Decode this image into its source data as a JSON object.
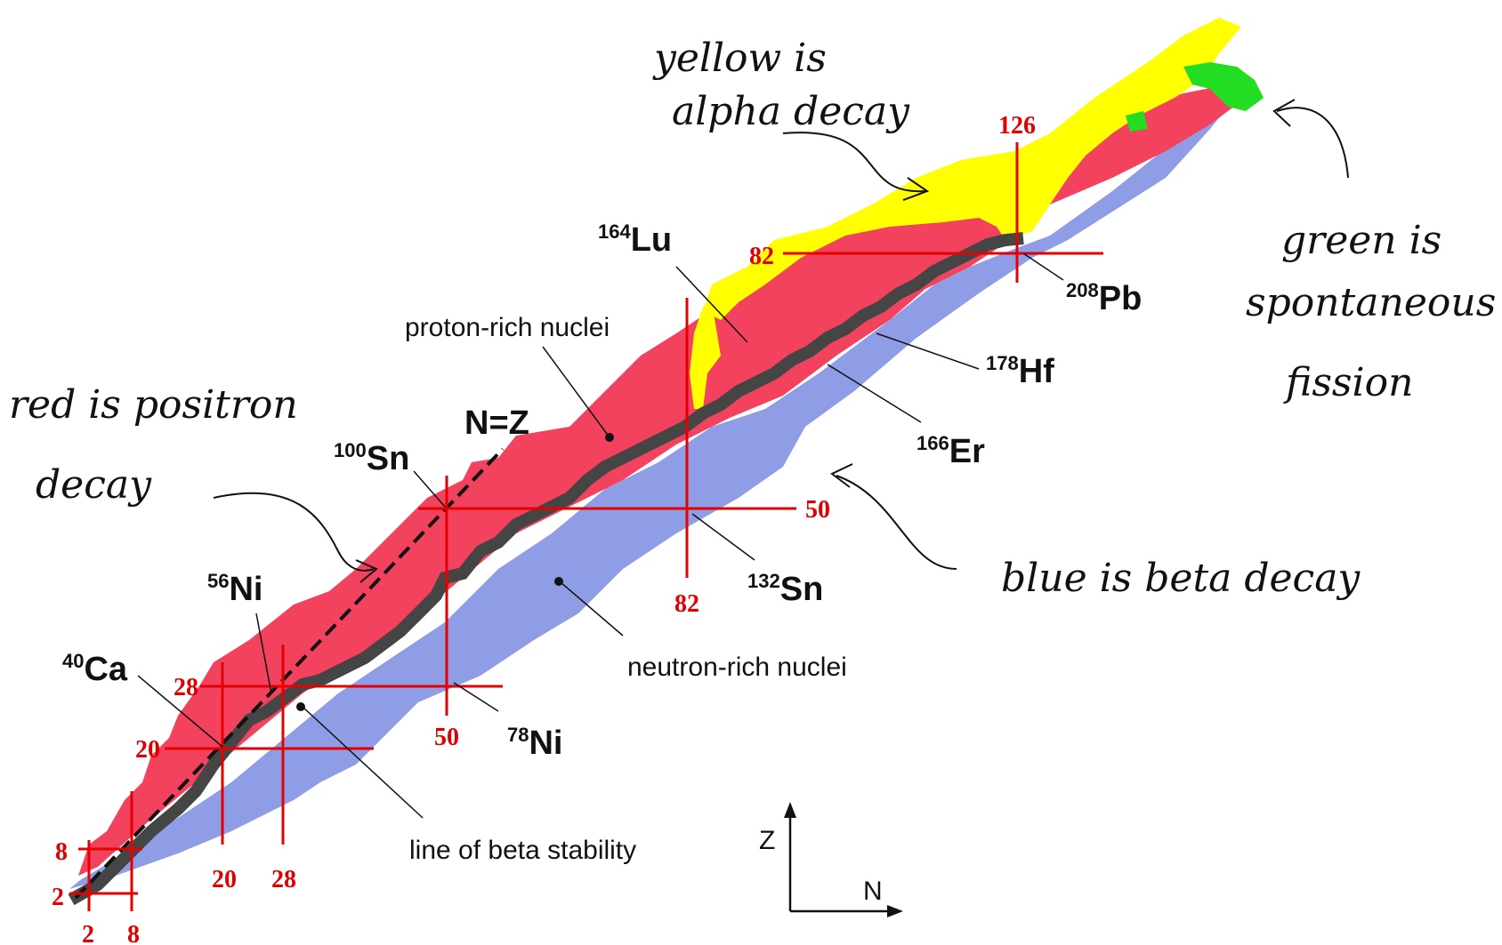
{
  "colors": {
    "positron_decay": "#f2425e",
    "beta_decay": "#8f9ce6",
    "alpha_decay": "#ffff00",
    "spontaneous_fission": "#22dd22",
    "stable": "#454545",
    "magic_lines": "#e60000",
    "ink": "#111111"
  },
  "region_labels": {
    "proton_rich": "proton-rich nuclei",
    "neutron_rich": "neutron-rich nuclei",
    "beta_stability": "line of beta stability",
    "nz": "N=Z"
  },
  "nuclides": [
    {
      "mass": "164",
      "symbol": "Lu"
    },
    {
      "mass": "208",
      "symbol": "Pb"
    },
    {
      "mass": "178",
      "symbol": "Hf"
    },
    {
      "mass": "166",
      "symbol": "Er"
    },
    {
      "mass": "100",
      "symbol": "Sn"
    },
    {
      "mass": "132",
      "symbol": "Sn"
    },
    {
      "mass": "56",
      "symbol": "Ni"
    },
    {
      "mass": "40",
      "symbol": "Ca"
    },
    {
      "mass": "78",
      "symbol": "Ni"
    }
  ],
  "magic_numbers": {
    "z_labels": [
      "2",
      "8",
      "20",
      "28",
      "50",
      "82",
      "126"
    ],
    "n_labels": [
      "2",
      "8",
      "20",
      "28",
      "50",
      "82"
    ]
  },
  "axes": {
    "vertical": "Z",
    "horizontal": "N"
  },
  "handwritten_notes": {
    "yellow": [
      "yellow is",
      "alpha decay"
    ],
    "green": [
      "green is",
      "spontaneous",
      "fission"
    ],
    "red": [
      "red is positron",
      "decay"
    ],
    "blue": "blue is beta decay"
  }
}
